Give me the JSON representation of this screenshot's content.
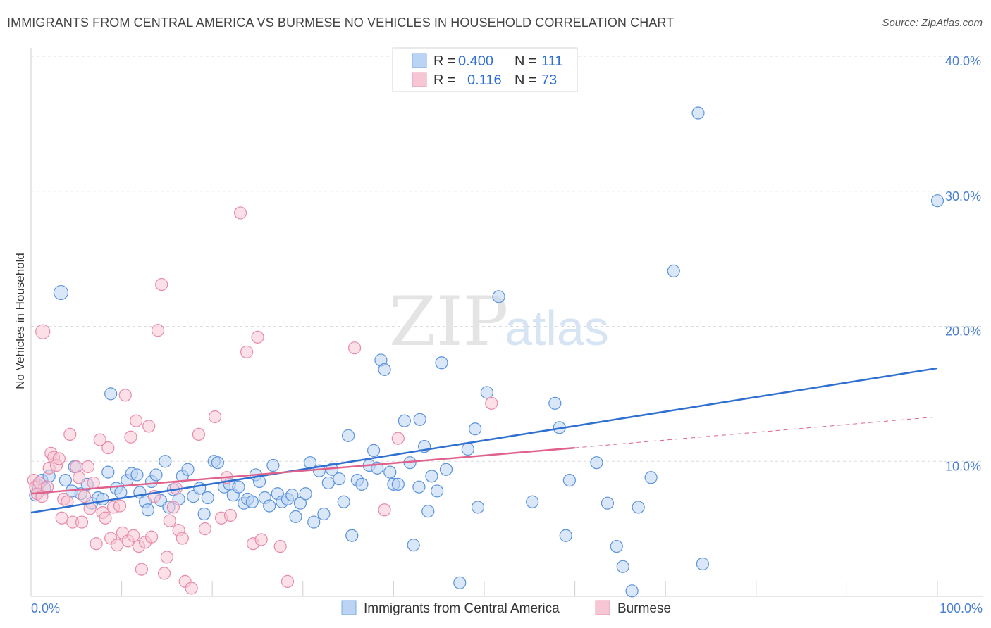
{
  "header": {
    "title": "IMMIGRANTS FROM CENTRAL AMERICA VS BURMESE NO VEHICLES IN HOUSEHOLD CORRELATION CHART",
    "source": "Source: ZipAtlas.com"
  },
  "watermark": {
    "zip": "ZIP",
    "atlas": "atlas"
  },
  "legend_top": [
    {
      "r_label": "R = ",
      "r_value": "0.400",
      "n_label": "N = ",
      "n_value": "111",
      "color": "#7aaae8",
      "fill": "#bcd4f4"
    },
    {
      "r_label": "R = ",
      "r_value": "0.116",
      "n_label": "N = ",
      "n_value": "73",
      "color": "#e89ab4",
      "fill": "#f7c6d5"
    }
  ],
  "legend_bottom": [
    {
      "label": "Immigrants from Central America",
      "color": "#7aaae8",
      "fill": "#bcd4f4"
    },
    {
      "label": "Burmese",
      "color": "#e89ab4",
      "fill": "#f7c6d5"
    }
  ],
  "chart_data": {
    "type": "scatter",
    "title": "IMMIGRANTS FROM CENTRAL AMERICA VS BURMESE NO VEHICLES IN HOUSEHOLD CORRELATION CHART",
    "xlabel": "",
    "ylabel": "No Vehicles in Household",
    "xlim": [
      0,
      100
    ],
    "ylim": [
      0,
      40
    ],
    "x_tick_labels": [
      "0.0%",
      "100.0%"
    ],
    "y_ticks": [
      10,
      20,
      30,
      40
    ],
    "y_tick_labels": [
      "10.0%",
      "20.0%",
      "30.0%",
      "40.0%"
    ],
    "grid": true,
    "series": [
      {
        "name": "Immigrants from Central America",
        "color": "#5b93dc",
        "fill": "#bcd4f4",
        "trend": {
          "x": [
            0,
            100
          ],
          "y": [
            6.2,
            16.9
          ],
          "color": "#2e6fd0"
        },
        "points": [
          [
            0.5,
            7.5
          ],
          [
            0.8,
            8.2
          ],
          [
            1.2,
            8.6
          ],
          [
            1.5,
            8.0
          ],
          [
            2.0,
            8.9
          ],
          [
            3.3,
            22.5
          ],
          [
            3.8,
            8.6
          ],
          [
            4.5,
            7.8
          ],
          [
            4.8,
            9.6
          ],
          [
            5.5,
            7.6
          ],
          [
            6.2,
            8.3
          ],
          [
            6.7,
            6.9
          ],
          [
            7.4,
            7.3
          ],
          [
            7.9,
            7.2
          ],
          [
            8.5,
            9.2
          ],
          [
            8.8,
            15.0
          ],
          [
            9.4,
            8.0
          ],
          [
            9.9,
            7.7
          ],
          [
            10.6,
            8.6
          ],
          [
            11.1,
            9.1
          ],
          [
            11.7,
            9.0
          ],
          [
            12.0,
            7.7
          ],
          [
            12.6,
            7.0
          ],
          [
            12.9,
            6.4
          ],
          [
            13.3,
            8.5
          ],
          [
            13.8,
            9.0
          ],
          [
            14.3,
            7.1
          ],
          [
            14.8,
            10.0
          ],
          [
            15.2,
            6.6
          ],
          [
            15.7,
            7.9
          ],
          [
            16.3,
            7.2
          ],
          [
            16.7,
            8.9
          ],
          [
            17.3,
            9.4
          ],
          [
            17.9,
            7.4
          ],
          [
            18.6,
            8.0
          ],
          [
            19.1,
            6.1
          ],
          [
            19.5,
            7.3
          ],
          [
            20.2,
            10.0
          ],
          [
            20.6,
            9.9
          ],
          [
            21.3,
            8.1
          ],
          [
            21.9,
            8.3
          ],
          [
            22.3,
            7.5
          ],
          [
            22.9,
            8.1
          ],
          [
            23.5,
            6.9
          ],
          [
            23.9,
            7.2
          ],
          [
            24.4,
            7.0
          ],
          [
            24.8,
            9.0
          ],
          [
            25.2,
            8.5
          ],
          [
            25.8,
            7.3
          ],
          [
            26.3,
            6.7
          ],
          [
            26.7,
            9.7
          ],
          [
            27.2,
            7.6
          ],
          [
            27.7,
            7.0
          ],
          [
            28.3,
            7.2
          ],
          [
            28.8,
            7.5
          ],
          [
            29.2,
            5.9
          ],
          [
            29.7,
            6.9
          ],
          [
            30.3,
            7.6
          ],
          [
            30.8,
            9.9
          ],
          [
            31.2,
            5.5
          ],
          [
            31.8,
            9.3
          ],
          [
            32.3,
            6.1
          ],
          [
            32.8,
            8.4
          ],
          [
            33.2,
            9.4
          ],
          [
            34.0,
            8.7
          ],
          [
            34.5,
            7.0
          ],
          [
            35.0,
            11.9
          ],
          [
            35.4,
            4.5
          ],
          [
            36.0,
            8.6
          ],
          [
            36.5,
            8.3
          ],
          [
            37.3,
            9.7
          ],
          [
            37.8,
            10.8
          ],
          [
            38.2,
            9.5
          ],
          [
            38.6,
            17.5
          ],
          [
            39.0,
            16.8
          ],
          [
            39.6,
            9.2
          ],
          [
            40.0,
            8.3
          ],
          [
            40.5,
            8.3
          ],
          [
            41.2,
            13.0
          ],
          [
            41.8,
            9.9
          ],
          [
            42.2,
            3.8
          ],
          [
            42.8,
            8.1
          ],
          [
            42.9,
            13.1
          ],
          [
            43.4,
            11.1
          ],
          [
            43.8,
            6.3
          ],
          [
            44.2,
            8.9
          ],
          [
            44.8,
            7.8
          ],
          [
            45.3,
            17.3
          ],
          [
            45.8,
            9.4
          ],
          [
            47.3,
            1.0
          ],
          [
            48.2,
            10.9
          ],
          [
            49.0,
            12.4
          ],
          [
            49.3,
            6.6
          ],
          [
            50.3,
            15.1
          ],
          [
            51.6,
            22.2
          ],
          [
            55.3,
            7.0
          ],
          [
            57.8,
            14.3
          ],
          [
            58.3,
            12.5
          ],
          [
            59.0,
            4.5
          ],
          [
            59.4,
            8.6
          ],
          [
            62.4,
            9.9
          ],
          [
            63.6,
            6.9
          ],
          [
            64.6,
            3.7
          ],
          [
            65.3,
            2.2
          ],
          [
            66.3,
            0.4
          ],
          [
            67.0,
            6.6
          ],
          [
            68.4,
            8.8
          ],
          [
            70.9,
            24.1
          ],
          [
            73.6,
            35.8
          ],
          [
            74.1,
            2.4
          ],
          [
            100.0,
            29.3
          ]
        ]
      },
      {
        "name": "Burmese",
        "color": "#e88aa9",
        "fill": "#f7c6d5",
        "trend": {
          "x": [
            0,
            60
          ],
          "y": [
            7.6,
            11.0
          ],
          "color": "#e0628c"
        },
        "trend_extension": {
          "x": [
            60,
            100
          ],
          "y": [
            11.0,
            13.3
          ]
        },
        "points": [
          [
            0.3,
            8.6
          ],
          [
            0.5,
            8.1
          ],
          [
            0.7,
            7.6
          ],
          [
            0.9,
            8.4
          ],
          [
            1.2,
            7.4
          ],
          [
            1.3,
            19.6
          ],
          [
            1.8,
            8.1
          ],
          [
            2.0,
            9.5
          ],
          [
            2.2,
            10.6
          ],
          [
            2.5,
            10.3
          ],
          [
            2.8,
            9.7
          ],
          [
            3.1,
            10.2
          ],
          [
            3.4,
            5.8
          ],
          [
            3.6,
            7.2
          ],
          [
            4.0,
            7.0
          ],
          [
            4.3,
            12.0
          ],
          [
            4.6,
            5.5
          ],
          [
            5.0,
            9.6
          ],
          [
            5.3,
            8.8
          ],
          [
            5.6,
            5.5
          ],
          [
            5.9,
            7.4
          ],
          [
            6.3,
            9.6
          ],
          [
            6.5,
            6.5
          ],
          [
            6.9,
            8.4
          ],
          [
            7.2,
            3.9
          ],
          [
            7.6,
            11.6
          ],
          [
            7.9,
            6.2
          ],
          [
            8.2,
            5.8
          ],
          [
            8.5,
            11.0
          ],
          [
            8.8,
            4.3
          ],
          [
            9.1,
            6.6
          ],
          [
            9.5,
            3.8
          ],
          [
            9.8,
            6.7
          ],
          [
            10.1,
            4.7
          ],
          [
            10.4,
            14.9
          ],
          [
            10.7,
            4.1
          ],
          [
            11.0,
            11.8
          ],
          [
            11.3,
            4.5
          ],
          [
            11.6,
            13.0
          ],
          [
            11.9,
            3.7
          ],
          [
            12.2,
            2.0
          ],
          [
            12.6,
            4.0
          ],
          [
            13.0,
            12.6
          ],
          [
            13.3,
            4.4
          ],
          [
            13.6,
            7.4
          ],
          [
            14.0,
            19.7
          ],
          [
            14.4,
            23.1
          ],
          [
            14.7,
            1.7
          ],
          [
            15.0,
            2.9
          ],
          [
            15.3,
            5.6
          ],
          [
            15.7,
            6.6
          ],
          [
            16.0,
            8.0
          ],
          [
            16.3,
            4.9
          ],
          [
            16.7,
            4.3
          ],
          [
            17.0,
            1.1
          ],
          [
            17.7,
            0.6
          ],
          [
            18.5,
            12.0
          ],
          [
            19.2,
            5.0
          ],
          [
            20.3,
            13.3
          ],
          [
            21.0,
            5.8
          ],
          [
            21.6,
            8.8
          ],
          [
            22.0,
            6.0
          ],
          [
            23.1,
            28.4
          ],
          [
            23.8,
            18.1
          ],
          [
            24.5,
            3.9
          ],
          [
            25.0,
            19.2
          ],
          [
            25.4,
            4.2
          ],
          [
            27.5,
            3.7
          ],
          [
            28.3,
            1.1
          ],
          [
            35.7,
            18.4
          ],
          [
            39.0,
            6.4
          ],
          [
            40.5,
            11.7
          ],
          [
            50.8,
            14.3
          ]
        ]
      }
    ]
  }
}
